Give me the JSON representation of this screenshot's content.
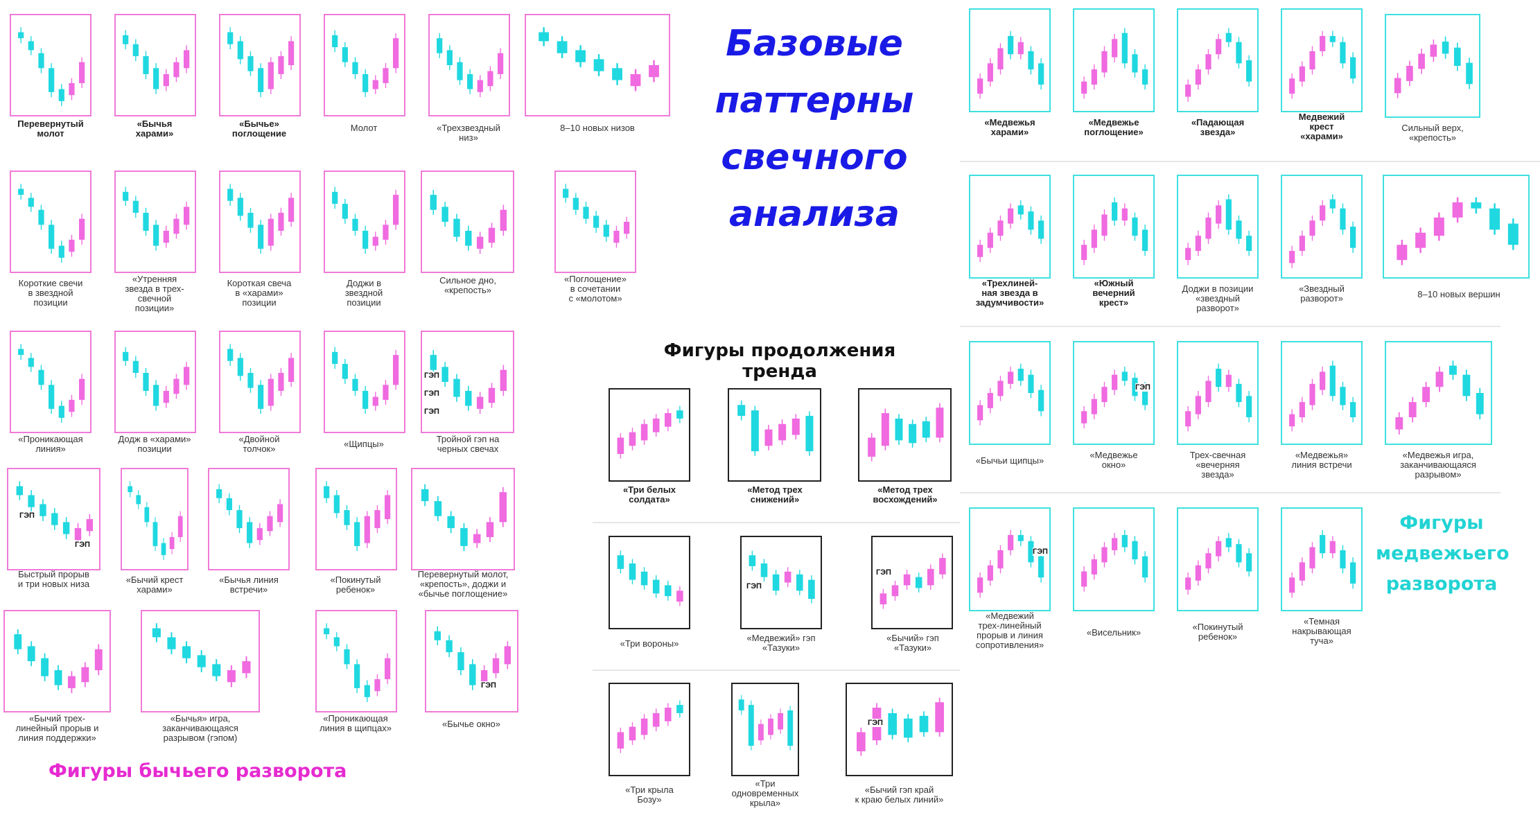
{
  "titles": {
    "main": "Базовые\nпаттерны\nсвечного\nанализа",
    "bullish": "Фигуры бычьего разворота",
    "continuation": "Фигуры продолжения тренда",
    "bearish": "Фигуры\nмедвежьего\nразворота"
  },
  "colors": {
    "bullish_frame": "#f07ad8",
    "bearish_frame": "#3ee0e0",
    "neutral_frame": "#222222",
    "pink_candle": "#f06ae0",
    "cyan_candle": "#20d8e0",
    "bullish_title": "#e62ad0",
    "bearish_title": "#22d3d3",
    "main_title": "#1a1ae6"
  },
  "gap_label": "ГЭП",
  "bullish": [
    {
      "label": "Перевернутый\nмолот",
      "bold": true,
      "variant": 0
    },
    {
      "label": "«Бычья\nхарами»",
      "bold": true,
      "variant": 1
    },
    {
      "label": "«Бычье»\nпоглощение",
      "bold": true,
      "variant": 2
    },
    {
      "label": "Молот",
      "bold": false,
      "variant": 3
    },
    {
      "label": "«Трехзвездный\nниз»",
      "bold": false,
      "variant": 4
    },
    {
      "label": "8–10 новых низов",
      "bold": false,
      "variant": 5
    },
    {
      "label": "Короткие свечи\nв звездной\nпозиции",
      "bold": false,
      "variant": 0
    },
    {
      "label": "«Утренняя\nзвезда в трех-\nсвечной\nпозиции»",
      "bold": false,
      "variant": 1
    },
    {
      "label": "Короткая свеча\nв «харами»\nпозиции",
      "bold": false,
      "variant": 2
    },
    {
      "label": "Доджи в\nзвездной\nпозиции",
      "bold": false,
      "variant": 3
    },
    {
      "label": "Сильное дно,\n«крепость»",
      "bold": false,
      "variant": 4
    },
    {
      "label": "«Поглощение»\nв сочетании\nс «молотом»",
      "bold": false,
      "variant": 5
    },
    {
      "label": "«Проникающая\nлиния»",
      "bold": false,
      "variant": 0
    },
    {
      "label": "Додж в «харами»\nпозиции",
      "bold": false,
      "variant": 1
    },
    {
      "label": "«Двойной\nтолчок»",
      "bold": false,
      "variant": 2
    },
    {
      "label": "«Щипцы»",
      "bold": false,
      "variant": 3
    },
    {
      "label": "Тройной гэп на\nчерных свечах",
      "bold": false,
      "variant": 4
    },
    {
      "label": "Быстрый прорыв\nи три новых низа",
      "bold": false,
      "variant": 5
    },
    {
      "label": "«Бычий крест\nхарами»",
      "bold": false,
      "variant": 0
    },
    {
      "label": "«Бычья линия\nвстречи»",
      "bold": false,
      "variant": 1
    },
    {
      "label": "«Покинутый\nребенок»",
      "bold": false,
      "variant": 2
    },
    {
      "label": "Перевернутый молот,\n«крепость», доджи и\n«бычье поглощение»",
      "bold": false,
      "variant": 3
    },
    {
      "label": "«Бычий трех-\nлинейный прорыв и\nлиния поддержки»",
      "bold": false,
      "variant": 4
    },
    {
      "label": "«Бычья» игра,\nзаканчивающаяся\nразрывом (гэпом)",
      "bold": false,
      "variant": 5
    },
    {
      "label": "«Проникающая\nлиния в щипцах»",
      "bold": false,
      "variant": 0
    },
    {
      "label": "«Бычье окно»",
      "bold": false,
      "variant": 1
    }
  ],
  "continuation": [
    {
      "label": "«Три белых\nсолдата»",
      "bold": true,
      "variant": 0
    },
    {
      "label": "«Метод трех\nснижений»",
      "bold": true,
      "variant": 1
    },
    {
      "label": "«Метод трех\nвосхождений»",
      "bold": true,
      "variant": 2
    },
    {
      "label": "«Три вороны»",
      "bold": false,
      "variant": 3
    },
    {
      "label": "«Медвежий» гэп\n«Тазуки»",
      "bold": false,
      "variant": 4
    },
    {
      "label": "«Бычий» гэп\n«Тазуки»",
      "bold": false,
      "variant": 5
    },
    {
      "label": "«Три крыла\nБозу»",
      "bold": false,
      "variant": 0
    },
    {
      "label": "«Три\nодновременных\nкрыла»",
      "bold": false,
      "variant": 1
    },
    {
      "label": "«Бычий гэп край\nк краю белых линий»",
      "bold": false,
      "variant": 2
    }
  ],
  "bearish": [
    {
      "label": "«Медвежья\nхарами»",
      "bold": true,
      "variant": 0
    },
    {
      "label": "«Медвежье\nпоглощение»",
      "bold": true,
      "variant": 1
    },
    {
      "label": "«Падающая\nзвезда»",
      "bold": true,
      "variant": 2
    },
    {
      "label": "Медвежий\nкрест\n«харами»",
      "bold": true,
      "variant": 3
    },
    {
      "label": "Сильный верх,\n«крепость»",
      "bold": false,
      "variant": 4
    },
    {
      "label": "«Трехлиней-\nная звезда в\nзадумчивости»",
      "bold": true,
      "variant": 5
    },
    {
      "label": "«Южный\nвечерний\nкрест»",
      "bold": true,
      "variant": 0
    },
    {
      "label": "Доджи в позиции\n«звездный\nразворот»",
      "bold": false,
      "variant": 1
    },
    {
      "label": "«Звездный\nразворот»",
      "bold": false,
      "variant": 2
    },
    {
      "label": "8–10 новых вершин",
      "bold": false,
      "variant": 3
    },
    {
      "label": "«Бычьи щипцы»",
      "bold": false,
      "variant": 4
    },
    {
      "label": "«Медвежье\nокно»",
      "bold": false,
      "variant": 5
    },
    {
      "label": "Трех-свечная\n«вечерняя\nзвезда»",
      "bold": false,
      "variant": 0
    },
    {
      "label": "«Медвежья»\nлиния встречи",
      "bold": false,
      "variant": 1
    },
    {
      "label": "«Медвежья игра,\nзаканчивающаяся\nразрывом»",
      "bold": false,
      "variant": 2
    },
    {
      "label": "«Медвежий\nтрех-линейный\nпрорыв и линия\nсопротивления»",
      "bold": false,
      "variant": 3
    },
    {
      "label": "«Висельник»",
      "bold": false,
      "variant": 4
    },
    {
      "label": "«Покинутый\nребенок»",
      "bold": false,
      "variant": 5
    },
    {
      "label": "«Темная\nнакрывающая\nтуча»",
      "bold": false,
      "variant": 0
    }
  ]
}
